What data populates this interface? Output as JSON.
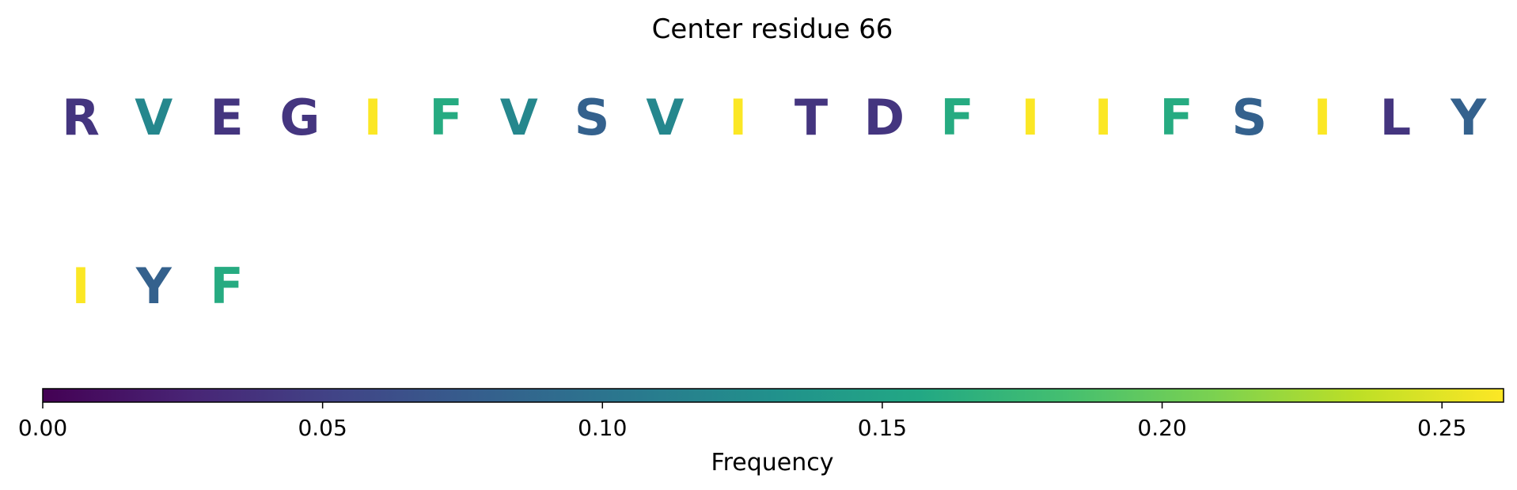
{
  "chart_data": {
    "type": "heatmap",
    "title": "Center residue 66",
    "residues": [
      {
        "letter": "R",
        "frequency": 0.04
      },
      {
        "letter": "V",
        "frequency": 0.12
      },
      {
        "letter": "E",
        "frequency": 0.04
      },
      {
        "letter": "G",
        "frequency": 0.04
      },
      {
        "letter": "I",
        "frequency": 0.26
      },
      {
        "letter": "F",
        "frequency": 0.16
      },
      {
        "letter": "V",
        "frequency": 0.12
      },
      {
        "letter": "S",
        "frequency": 0.08
      },
      {
        "letter": "V",
        "frequency": 0.12
      },
      {
        "letter": "I",
        "frequency": 0.26
      },
      {
        "letter": "T",
        "frequency": 0.04
      },
      {
        "letter": "D",
        "frequency": 0.04
      },
      {
        "letter": "F",
        "frequency": 0.16
      },
      {
        "letter": "I",
        "frequency": 0.26
      },
      {
        "letter": "I",
        "frequency": 0.26
      },
      {
        "letter": "F",
        "frequency": 0.16
      },
      {
        "letter": "S",
        "frequency": 0.08
      },
      {
        "letter": "I",
        "frequency": 0.26
      },
      {
        "letter": "L",
        "frequency": 0.04
      },
      {
        "letter": "Y",
        "frequency": 0.08
      },
      {
        "letter": "I",
        "frequency": 0.26
      },
      {
        "letter": "Y",
        "frequency": 0.08
      },
      {
        "letter": "F",
        "frequency": 0.16
      }
    ],
    "colorbar": {
      "colormap": "viridis",
      "range": [
        0,
        0.261
      ],
      "ticks": [
        0.0,
        0.05,
        0.1,
        0.15,
        0.2,
        0.25
      ],
      "tick_labels": [
        "0.00",
        "0.05",
        "0.10",
        "0.15",
        "0.20",
        "0.25"
      ],
      "label": "Frequency",
      "orientation": "horizontal"
    }
  }
}
